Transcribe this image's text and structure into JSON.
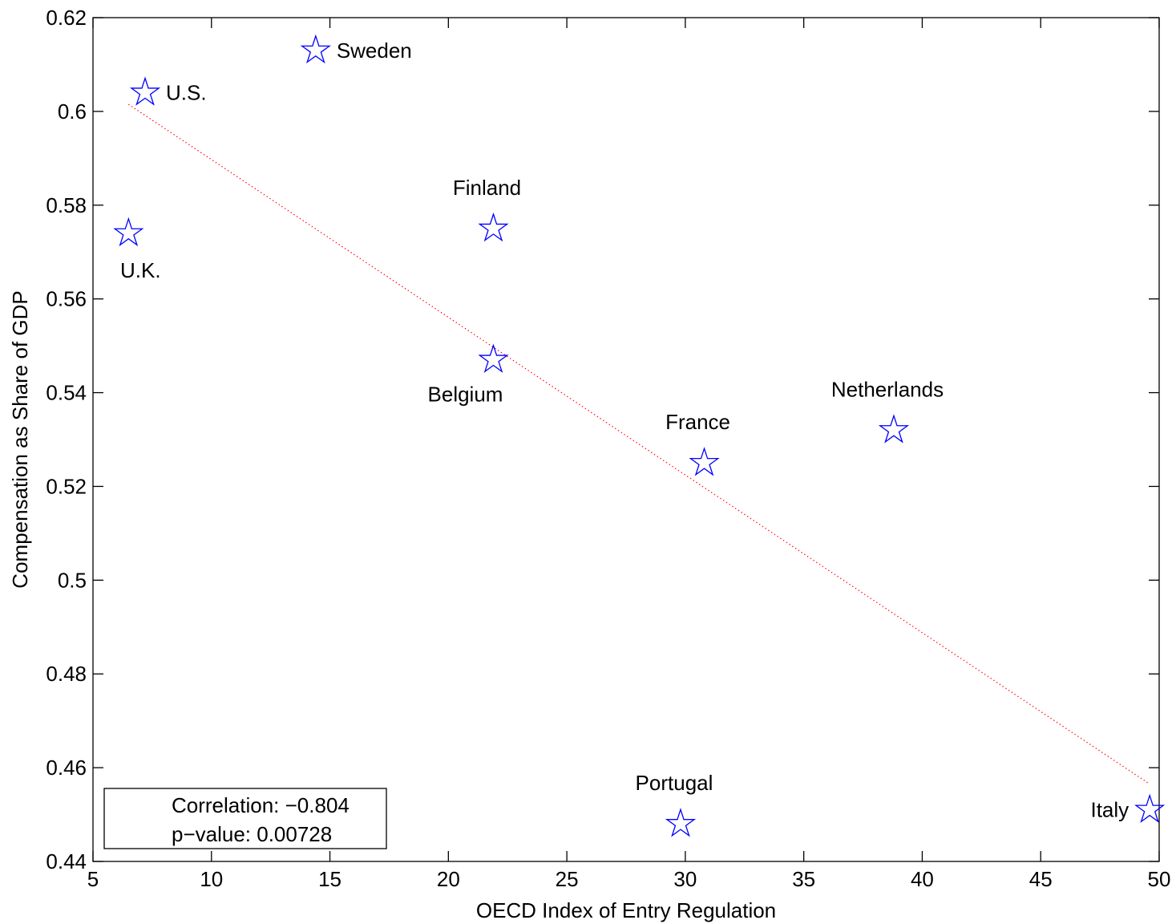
{
  "chart_data": {
    "type": "scatter",
    "title": "",
    "xlabel": "OECD Index of Entry Regulation",
    "ylabel": "Compensation as Share of GDP",
    "xlim": [
      5,
      50
    ],
    "ylim": [
      0.44,
      0.62
    ],
    "xticks": [
      5,
      10,
      15,
      20,
      25,
      30,
      35,
      40,
      45,
      50
    ],
    "yticks": [
      0.44,
      0.46,
      0.48,
      0.5,
      0.52,
      0.54,
      0.56,
      0.58,
      0.6,
      0.62
    ],
    "xtick_labels": [
      "5",
      "10",
      "15",
      "20",
      "25",
      "30",
      "35",
      "40",
      "45",
      "50"
    ],
    "ytick_labels": [
      "0.44",
      "0.46",
      "0.48",
      "0.5",
      "0.52",
      "0.54",
      "0.56",
      "0.58",
      "0.6",
      "0.62"
    ],
    "grid": false,
    "marker": "pentagram",
    "marker_color": "#0000ff",
    "points": [
      {
        "label": "U.S.",
        "x": 7.2,
        "y": 0.604,
        "label_position": "right"
      },
      {
        "label": "Sweden",
        "x": 14.4,
        "y": 0.613,
        "label_position": "right"
      },
      {
        "label": "U.K.",
        "x": 6.5,
        "y": 0.574,
        "label_position": "below"
      },
      {
        "label": "Finland",
        "x": 21.9,
        "y": 0.575,
        "label_position": "above"
      },
      {
        "label": "Belgium",
        "x": 21.9,
        "y": 0.547,
        "label_position": "below-left"
      },
      {
        "label": "France",
        "x": 30.8,
        "y": 0.525,
        "label_position": "above"
      },
      {
        "label": "Netherlands",
        "x": 38.8,
        "y": 0.532,
        "label_position": "above"
      },
      {
        "label": "Portugal",
        "x": 29.8,
        "y": 0.448,
        "label_position": "above"
      },
      {
        "label": "Italy",
        "x": 49.6,
        "y": 0.451,
        "label_position": "left"
      }
    ],
    "fit_line": {
      "x": [
        6.5,
        49.6
      ],
      "y": [
        0.6015,
        0.4565
      ],
      "color": "#ff0000",
      "style": "dotted"
    },
    "legend": {
      "placement": "bottom-left",
      "lines": [
        "Correlation: −0.804",
        "p−value: 0.00728"
      ]
    }
  }
}
